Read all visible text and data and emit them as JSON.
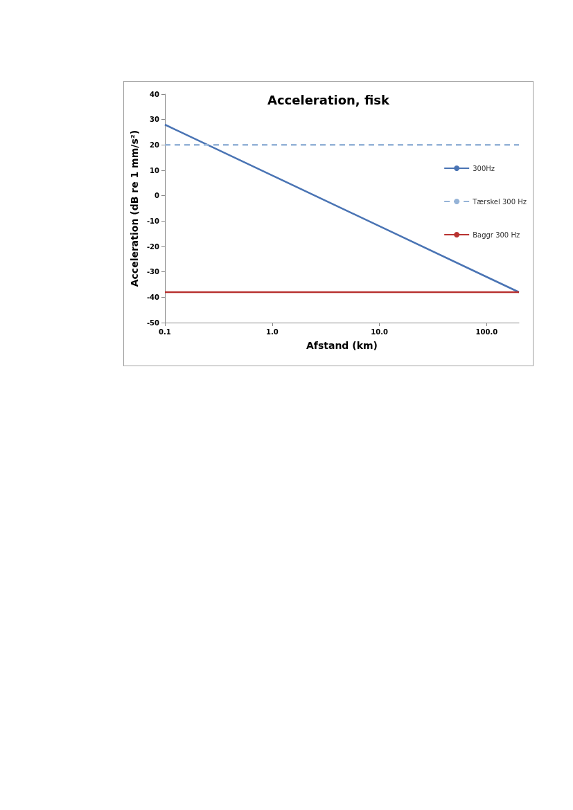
{
  "chart_data": {
    "type": "line",
    "title": "Acceleration, fisk",
    "xlabel": "Afstand (km)",
    "ylabel": "Acceleration (dB re 1 mm/s²)",
    "log": "x",
    "xlim": [
      0.1,
      200
    ],
    "xticks": [
      0.1,
      {
        "value": 1,
        "label": "1.0"
      },
      {
        "value": 10,
        "label": "10.0"
      },
      {
        "value": 100,
        "label": "100.0"
      }
    ],
    "ylim": [
      -50,
      40
    ],
    "yticks": [
      -50,
      -40,
      -30,
      -20,
      -10,
      0,
      10,
      20,
      30,
      40
    ],
    "grid": false,
    "legend": "right",
    "marker": "none",
    "series": [
      {
        "name": "300Hz",
        "color": "#4a74b4",
        "line_style": "solid",
        "x": [
          0.1,
          1,
          10,
          100,
          200
        ],
        "values": [
          28,
          8,
          -12,
          -32,
          -38
        ]
      },
      {
        "name": "Tærskel 300 Hz",
        "color": "#95b3d7",
        "line_style": "dashed",
        "x": [
          0.1,
          200
        ],
        "values": [
          20,
          20
        ]
      },
      {
        "name": "Baggr 300 Hz",
        "color": "#b83230",
        "line_style": "solid",
        "x": [
          0.1,
          200
        ],
        "values": [
          -38,
          -38
        ]
      }
    ]
  }
}
